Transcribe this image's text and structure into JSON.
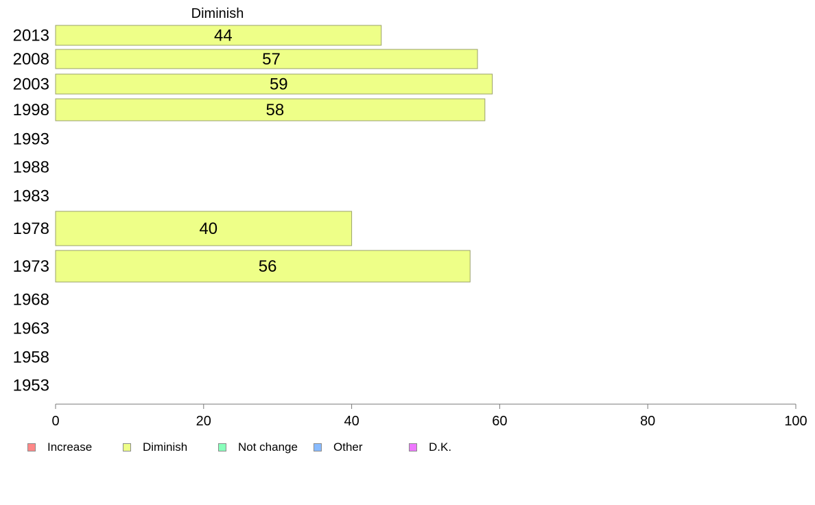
{
  "chart_data": {
    "type": "bar",
    "orientation": "horizontal",
    "title": "Diminish",
    "categories": [
      "2013",
      "2008",
      "2003",
      "1998",
      "1993",
      "1988",
      "1983",
      "1978",
      "1973",
      "1968",
      "1963",
      "1958",
      "1953"
    ],
    "series": [
      {
        "name": "Diminish",
        "color": "#eeff88",
        "values": [
          44,
          57,
          59,
          58,
          null,
          null,
          null,
          40,
          56,
          null,
          null,
          null,
          null
        ]
      }
    ],
    "xlim": [
      0,
      100
    ],
    "xticks": [
      "0",
      "20",
      "40",
      "60",
      "80",
      "100"
    ],
    "grid": false,
    "legend": {
      "placement": "bottom",
      "items": [
        {
          "label": "Increase",
          "color": "#ff8888"
        },
        {
          "label": "Diminish",
          "color": "#eeff88"
        },
        {
          "label": "Not change",
          "color": "#88ffbb"
        },
        {
          "label": "Other",
          "color": "#88bbff"
        },
        {
          "label": "D.K.",
          "color": "#ee77ff"
        }
      ]
    }
  }
}
